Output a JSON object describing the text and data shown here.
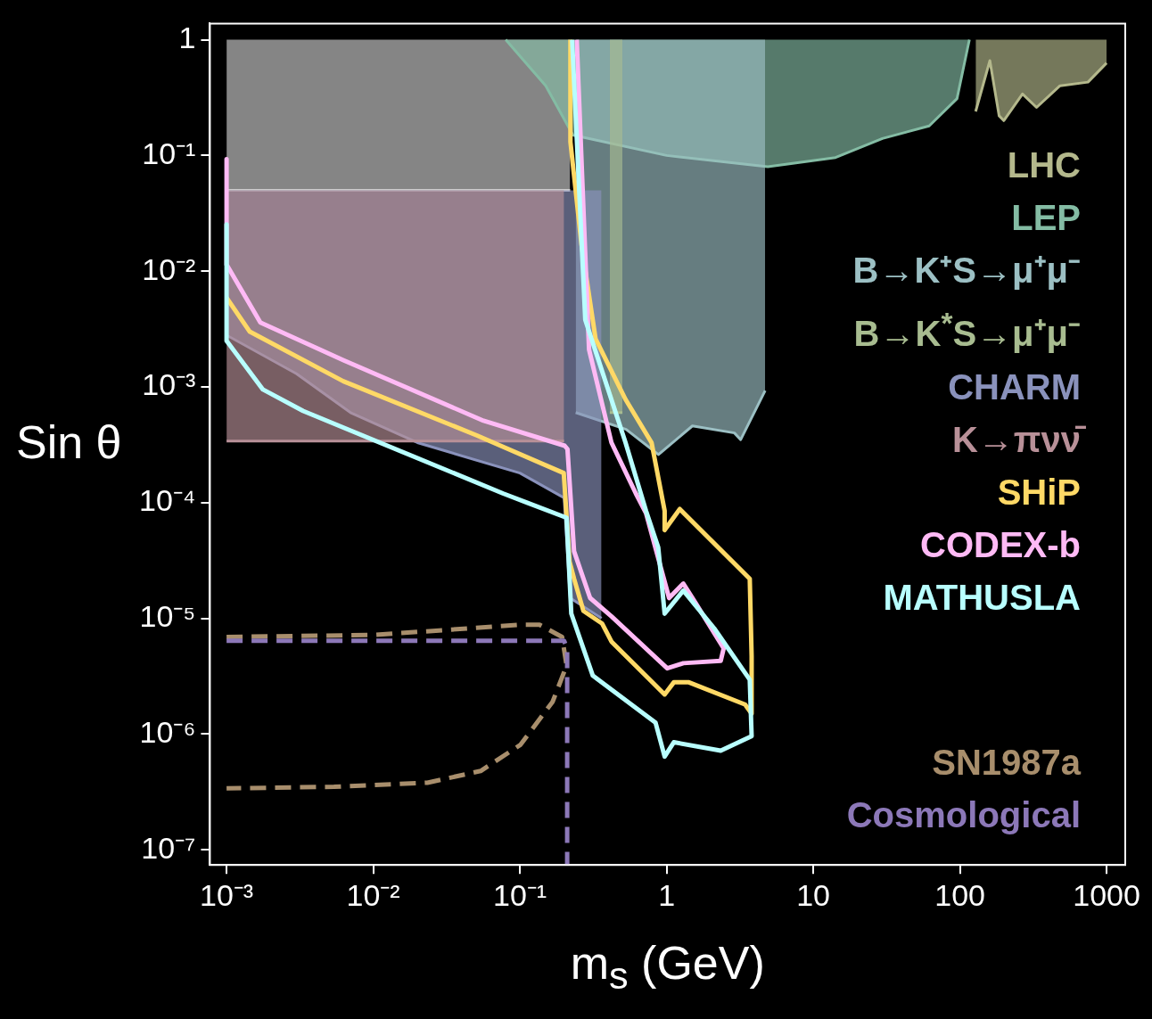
{
  "chart_data": {
    "type": "line",
    "xlabel": "m$_{s}$ (GeV)",
    "ylabel": "Sin θ",
    "log": "xy",
    "legend": "right",
    "marker": "none",
    "xlim": [
      0.00077,
      1340
    ],
    "ylim": [
      7.4e-08,
      1.38
    ],
    "xticks": [
      {
        "value": 0.001,
        "label": "10⁻³"
      },
      {
        "value": 0.01,
        "label": "10⁻²"
      },
      {
        "value": 0.1,
        "label": "10⁻¹"
      },
      1,
      10,
      100,
      1000
    ],
    "yticks": [
      {
        "value": 1e-07,
        "label": "10⁻⁷"
      },
      {
        "value": 1e-06,
        "label": "10⁻⁶"
      },
      {
        "value": 1e-05,
        "label": "10⁻⁵"
      },
      {
        "value": 0.0001,
        "label": "10⁻⁴"
      },
      {
        "value": 0.001,
        "label": "10⁻³"
      },
      {
        "value": 0.01,
        "label": "10⁻²"
      },
      {
        "value": 0.1,
        "label": "10⁻¹"
      },
      1
    ],
    "series": [
      {
        "color": "#cccccc",
        "x": [
          0.001,
          0.22
        ],
        "values": [
          0.05,
          0.05
        ],
        "lower": [
          0.05,
          0.05
        ],
        "upper": [
          1,
          1
        ]
      },
      {
        "name": "LHC",
        "color": "#b4b88c",
        "x": [
          128,
          160,
          185,
          199,
          267,
          333,
          481,
          746,
          1000
        ],
        "values": [
          0.24,
          0.66,
          0.22,
          0.2,
          0.34,
          0.26,
          0.4,
          0.43,
          0.63
        ],
        "lower": [
          0.24,
          0.66,
          0.22,
          0.2,
          0.34,
          0.26,
          0.4,
          0.43,
          0.63
        ],
        "upper": [
          1,
          1,
          1,
          1,
          1,
          1,
          1,
          1,
          1
        ]
      },
      {
        "name": "LEP",
        "color": "#84bca4",
        "x": [
          0.08,
          0.15,
          0.23,
          1,
          4.9,
          14.2,
          29.6,
          61.7,
          95.5,
          116
        ],
        "values": [
          1,
          0.4,
          0.15,
          0.1,
          0.08,
          0.096,
          0.14,
          0.18,
          0.31,
          1
        ],
        "lower": [
          1,
          0.4,
          0.15,
          0.1,
          0.08,
          0.096,
          0.14,
          0.18,
          0.31,
          1
        ],
        "upper": [
          1,
          1,
          1,
          1,
          1,
          1,
          1,
          1,
          1,
          1
        ]
      },
      {
        "name": "B→K⁺S→μ⁺μ⁻",
        "color": "#9cc0c4",
        "x": [
          0.24,
          0.53,
          0.88,
          1.5,
          2.9,
          3.2,
          4.7
        ],
        "values": [
          0.0006,
          0.00043,
          0.00026,
          0.00046,
          0.0004,
          0.00035,
          0.00093
        ],
        "lower": [
          0.0006,
          0.00043,
          0.00026,
          0.00046,
          0.0004,
          0.00035,
          0.00093
        ],
        "upper": [
          1,
          1,
          1,
          1,
          1,
          1,
          1
        ]
      },
      {
        "name": "B→K$^{*}$S→μ⁺μ⁻",
        "color": "#a8bc90",
        "x": [
          0.41,
          0.5
        ],
        "values": [
          0.0006,
          0.0006
        ],
        "lower": [
          0.0006,
          0.0006
        ],
        "upper": [
          1,
          1
        ]
      },
      {
        "name": "CHARM",
        "color": "#8a92bc",
        "x": [
          0.001,
          0.003,
          0.007,
          0.02,
          0.1,
          0.2,
          0.22,
          0.36
        ],
        "values": [
          0.0028,
          0.0013,
          0.0006,
          0.00033,
          0.00018,
          0.00011,
          1.5e-05,
          1e-05
        ],
        "lower": [
          0.0028,
          0.0013,
          0.0006,
          0.00033,
          0.00018,
          0.00011,
          1.5e-05,
          1e-05
        ],
        "upper": [
          0.05,
          0.05,
          0.05,
          0.05,
          0.05,
          0.05,
          0.05,
          0.05
        ]
      },
      {
        "name": "K→πνν̄",
        "color": "#b89098",
        "x": [
          0.001,
          0.2
        ],
        "values": [
          0.00034,
          0.00034
        ],
        "lower": [
          0.00034,
          0.00034
        ],
        "upper": [
          0.05,
          0.05
        ]
      },
      {
        "name": "SHiP",
        "color": "#ffd966",
        "x": [
          0.001,
          0.00144,
          0.00625,
          0.051,
          0.199,
          0.218,
          0.234,
          0.271,
          0.364,
          0.421,
          0.97,
          1.12,
          1.42,
          3.43,
          3.8,
          3.8,
          3.69,
          1.23,
          0.97,
          0.97,
          0.79,
          0.525,
          0.328,
          0.263,
          0.221,
          0.221
        ],
        "values": [
          0.0059,
          0.003,
          0.00112,
          0.00038,
          0.00018,
          3.1e-05,
          2.2e-05,
          1.16e-05,
          9e-06,
          6.3e-06,
          2.2e-06,
          2.8e-06,
          2.8e-06,
          1.8e-06,
          1.5e-06,
          4.7e-06,
          2.2e-05,
          8.8e-05,
          5.8e-05,
          8.5e-05,
          0.00033,
          0.00078,
          0.0026,
          0.0169,
          0.131,
          1
        ]
      },
      {
        "name": "CODEX-b",
        "color": "#ffbaf5",
        "x": [
          0.001,
          0.001,
          0.0017,
          0.00625,
          0.0565,
          0.202,
          0.211,
          0.234,
          0.301,
          0.421,
          1.01,
          1.3,
          2.34,
          2.45,
          1.57,
          1.3,
          1.04,
          0.724,
          0.617,
          0.421,
          0.296,
          0.244
        ],
        "values": [
          0.093,
          0.0114,
          0.0036,
          0.0017,
          0.00051,
          0.00031,
          0.00029,
          3.8e-05,
          1.5e-05,
          1.04e-05,
          3.7e-06,
          4.1e-06,
          4.3e-06,
          5.5e-06,
          1.37e-05,
          2e-05,
          1.5e-05,
          8.1e-05,
          0.00012,
          0.00033,
          0.0021,
          1
        ]
      },
      {
        "name": "MATHUSLA",
        "color": "#b8ffff",
        "x": [
          0.001,
          0.001,
          0.00177,
          0.00333,
          0.0767,
          0.112,
          0.208,
          0.224,
          0.314,
          0.84,
          0.97,
          1.12,
          2.34,
          3.8,
          3.69,
          2.11,
          1.3,
          0.97,
          0.877,
          0.724,
          0.525,
          0.279,
          0.227
        ],
        "values": [
          0.0254,
          0.0025,
          0.00095,
          0.00062,
          0.00012,
          0.0001,
          7.4e-05,
          1.1e-05,
          3.2e-06,
          1.26e-06,
          6.4e-07,
          8.5e-07,
          7.2e-07,
          9.6e-07,
          2.95e-06,
          8.2e-06,
          1.74e-05,
          1.1e-05,
          4.1e-05,
          8.5e-05,
          0.00033,
          0.0038,
          1
        ]
      },
      {
        "name": "SN1987a",
        "line_style": "dashed",
        "color": "#a88e6c",
        "x": [
          0.001,
          0.0103,
          0.101,
          0.136,
          0.194,
          0.208,
          0.167,
          0.101,
          0.054,
          0.0234,
          0.0054,
          0.001
        ],
        "values": [
          6.9e-06,
          7.2e-06,
          8.8e-06,
          8.8e-06,
          6.9e-06,
          3.9e-06,
          1.9e-06,
          8.1e-07,
          4.8e-07,
          3.8e-07,
          3.5e-07,
          3.4e-07
        ]
      },
      {
        "name": "Cosmological",
        "line_style": "dashed",
        "color": "#8c78b8",
        "x": [
          0.001,
          0.2,
          0.21,
          0.21
        ],
        "values": [
          6.4e-06,
          6.4e-06,
          5.5e-06,
          7.4e-08
        ]
      }
    ]
  }
}
